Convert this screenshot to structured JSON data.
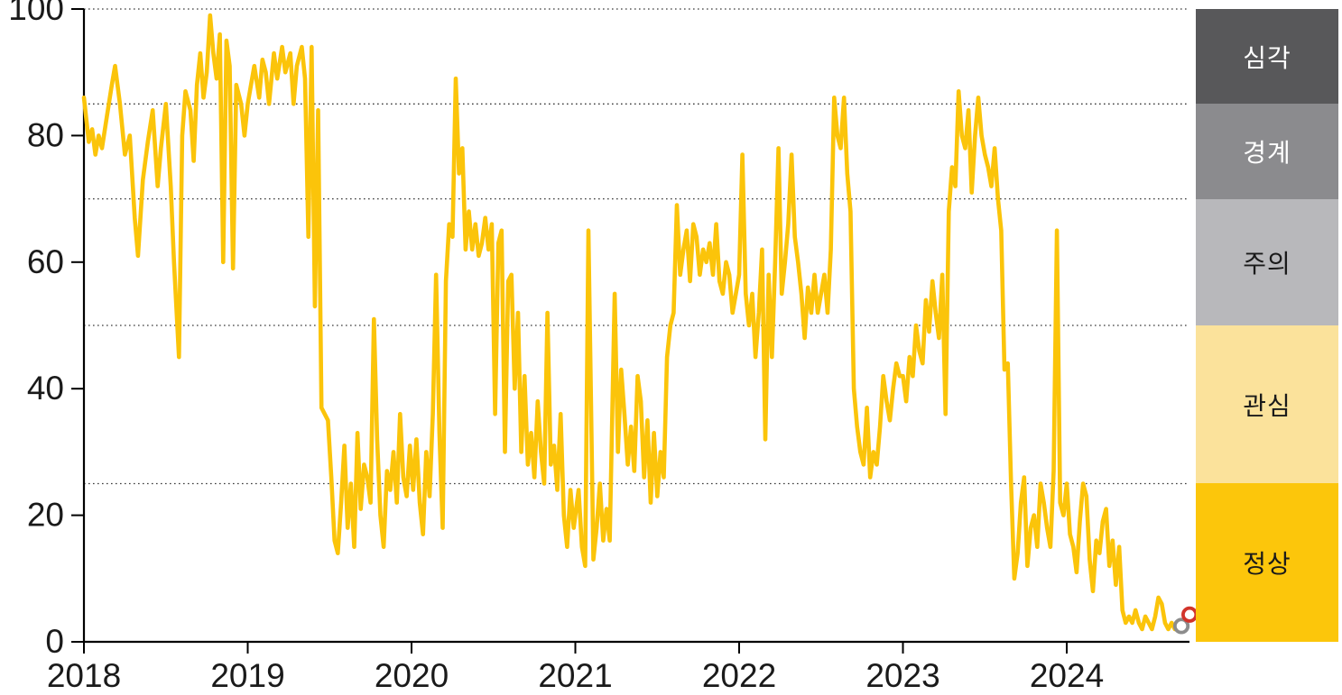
{
  "chart_data": {
    "type": "line",
    "title": "",
    "xlabel": "",
    "ylabel": "",
    "xlim": [
      2018,
      2024.78
    ],
    "ylim": [
      0,
      100
    ],
    "x_tick_labels": [
      "2018",
      "2019",
      "2020",
      "2021",
      "2022",
      "2023",
      "2024"
    ],
    "x_tick_values": [
      2018,
      2019,
      2020,
      2021,
      2022,
      2023,
      2024
    ],
    "y_tick_labels": [
      "0",
      "20",
      "40",
      "60",
      "80",
      "100"
    ],
    "y_tick_values": [
      0,
      20,
      40,
      60,
      80,
      100
    ],
    "gridline_values": [
      25,
      50,
      70,
      85,
      100
    ],
    "grid_style": "dotted",
    "line_color": "#FBC40A",
    "series_name": "risk-index",
    "points": [
      [
        2018.0,
        86
      ],
      [
        2018.03,
        79
      ],
      [
        2018.05,
        81
      ],
      [
        2018.07,
        77
      ],
      [
        2018.09,
        80
      ],
      [
        2018.11,
        78
      ],
      [
        2018.14,
        83
      ],
      [
        2018.17,
        88
      ],
      [
        2018.19,
        91
      ],
      [
        2018.22,
        85
      ],
      [
        2018.25,
        77
      ],
      [
        2018.28,
        80
      ],
      [
        2018.31,
        67
      ],
      [
        2018.33,
        61
      ],
      [
        2018.36,
        73
      ],
      [
        2018.39,
        79
      ],
      [
        2018.42,
        84
      ],
      [
        2018.45,
        72
      ],
      [
        2018.47,
        78
      ],
      [
        2018.5,
        85
      ],
      [
        2018.53,
        72
      ],
      [
        2018.55,
        60
      ],
      [
        2018.58,
        45
      ],
      [
        2018.6,
        80
      ],
      [
        2018.62,
        87
      ],
      [
        2018.65,
        84
      ],
      [
        2018.67,
        76
      ],
      [
        2018.69,
        88
      ],
      [
        2018.71,
        93
      ],
      [
        2018.73,
        86
      ],
      [
        2018.75,
        90
      ],
      [
        2018.77,
        99
      ],
      [
        2018.79,
        93
      ],
      [
        2018.81,
        89
      ],
      [
        2018.83,
        96
      ],
      [
        2018.85,
        60
      ],
      [
        2018.87,
        95
      ],
      [
        2018.89,
        91
      ],
      [
        2018.91,
        59
      ],
      [
        2018.93,
        88
      ],
      [
        2018.96,
        85
      ],
      [
        2018.98,
        80
      ],
      [
        2019.0,
        85
      ],
      [
        2019.02,
        88
      ],
      [
        2019.04,
        91
      ],
      [
        2019.07,
        86
      ],
      [
        2019.09,
        92
      ],
      [
        2019.11,
        90
      ],
      [
        2019.13,
        85
      ],
      [
        2019.16,
        93
      ],
      [
        2019.18,
        89
      ],
      [
        2019.21,
        94
      ],
      [
        2019.23,
        90
      ],
      [
        2019.26,
        93
      ],
      [
        2019.28,
        85
      ],
      [
        2019.3,
        91
      ],
      [
        2019.33,
        94
      ],
      [
        2019.35,
        89
      ],
      [
        2019.37,
        64
      ],
      [
        2019.39,
        94
      ],
      [
        2019.41,
        53
      ],
      [
        2019.43,
        84
      ],
      [
        2019.45,
        37
      ],
      [
        2019.47,
        36
      ],
      [
        2019.49,
        35
      ],
      [
        2019.51,
        26
      ],
      [
        2019.53,
        16
      ],
      [
        2019.55,
        14
      ],
      [
        2019.57,
        22
      ],
      [
        2019.59,
        31
      ],
      [
        2019.61,
        18
      ],
      [
        2019.63,
        25
      ],
      [
        2019.65,
        15
      ],
      [
        2019.67,
        33
      ],
      [
        2019.69,
        21
      ],
      [
        2019.71,
        28
      ],
      [
        2019.73,
        26
      ],
      [
        2019.75,
        22
      ],
      [
        2019.77,
        51
      ],
      [
        2019.79,
        32
      ],
      [
        2019.81,
        20
      ],
      [
        2019.83,
        15
      ],
      [
        2019.85,
        27
      ],
      [
        2019.87,
        24
      ],
      [
        2019.89,
        30
      ],
      [
        2019.91,
        22
      ],
      [
        2019.93,
        36
      ],
      [
        2019.95,
        26
      ],
      [
        2019.97,
        23
      ],
      [
        2019.99,
        31
      ],
      [
        2020.01,
        24
      ],
      [
        2020.03,
        32
      ],
      [
        2020.05,
        22
      ],
      [
        2020.07,
        17
      ],
      [
        2020.09,
        30
      ],
      [
        2020.11,
        23
      ],
      [
        2020.13,
        36
      ],
      [
        2020.15,
        58
      ],
      [
        2020.17,
        33
      ],
      [
        2020.19,
        18
      ],
      [
        2020.21,
        57
      ],
      [
        2020.23,
        66
      ],
      [
        2020.25,
        64
      ],
      [
        2020.27,
        89
      ],
      [
        2020.29,
        74
      ],
      [
        2020.31,
        78
      ],
      [
        2020.33,
        62
      ],
      [
        2020.35,
        68
      ],
      [
        2020.37,
        62
      ],
      [
        2020.39,
        66
      ],
      [
        2020.41,
        61
      ],
      [
        2020.43,
        63
      ],
      [
        2020.45,
        67
      ],
      [
        2020.47,
        62
      ],
      [
        2020.49,
        66
      ],
      [
        2020.51,
        36
      ],
      [
        2020.53,
        63
      ],
      [
        2020.55,
        65
      ],
      [
        2020.57,
        30
      ],
      [
        2020.59,
        57
      ],
      [
        2020.61,
        58
      ],
      [
        2020.63,
        40
      ],
      [
        2020.65,
        52
      ],
      [
        2020.67,
        30
      ],
      [
        2020.69,
        42
      ],
      [
        2020.71,
        28
      ],
      [
        2020.73,
        33
      ],
      [
        2020.75,
        26
      ],
      [
        2020.77,
        38
      ],
      [
        2020.79,
        30
      ],
      [
        2020.81,
        25
      ],
      [
        2020.83,
        52
      ],
      [
        2020.85,
        28
      ],
      [
        2020.87,
        31
      ],
      [
        2020.89,
        24
      ],
      [
        2020.91,
        36
      ],
      [
        2020.93,
        20
      ],
      [
        2020.95,
        15
      ],
      [
        2020.97,
        24
      ],
      [
        2020.99,
        18
      ],
      [
        2021.02,
        24
      ],
      [
        2021.04,
        15
      ],
      [
        2021.06,
        12
      ],
      [
        2021.08,
        65
      ],
      [
        2021.11,
        13
      ],
      [
        2021.13,
        18
      ],
      [
        2021.15,
        25
      ],
      [
        2021.17,
        16
      ],
      [
        2021.19,
        21
      ],
      [
        2021.21,
        16
      ],
      [
        2021.24,
        55
      ],
      [
        2021.26,
        30
      ],
      [
        2021.28,
        43
      ],
      [
        2021.3,
        36
      ],
      [
        2021.32,
        28
      ],
      [
        2021.34,
        34
      ],
      [
        2021.36,
        27
      ],
      [
        2021.38,
        42
      ],
      [
        2021.4,
        38
      ],
      [
        2021.42,
        26
      ],
      [
        2021.44,
        35
      ],
      [
        2021.46,
        22
      ],
      [
        2021.48,
        33
      ],
      [
        2021.5,
        23
      ],
      [
        2021.52,
        30
      ],
      [
        2021.54,
        26
      ],
      [
        2021.56,
        45
      ],
      [
        2021.58,
        50
      ],
      [
        2021.6,
        52
      ],
      [
        2021.62,
        69
      ],
      [
        2021.64,
        58
      ],
      [
        2021.66,
        62
      ],
      [
        2021.68,
        65
      ],
      [
        2021.7,
        57
      ],
      [
        2021.72,
        66
      ],
      [
        2021.74,
        64
      ],
      [
        2021.76,
        58
      ],
      [
        2021.78,
        62
      ],
      [
        2021.8,
        60
      ],
      [
        2021.82,
        63
      ],
      [
        2021.84,
        58
      ],
      [
        2021.86,
        66
      ],
      [
        2021.88,
        57
      ],
      [
        2021.9,
        55
      ],
      [
        2021.92,
        60
      ],
      [
        2021.94,
        58
      ],
      [
        2021.96,
        52
      ],
      [
        2021.98,
        55
      ],
      [
        2022.0,
        58
      ],
      [
        2022.02,
        77
      ],
      [
        2022.04,
        55
      ],
      [
        2022.06,
        50
      ],
      [
        2022.08,
        55
      ],
      [
        2022.1,
        45
      ],
      [
        2022.12,
        52
      ],
      [
        2022.14,
        62
      ],
      [
        2022.16,
        32
      ],
      [
        2022.18,
        58
      ],
      [
        2022.2,
        45
      ],
      [
        2022.22,
        60
      ],
      [
        2022.24,
        78
      ],
      [
        2022.26,
        55
      ],
      [
        2022.28,
        60
      ],
      [
        2022.3,
        66
      ],
      [
        2022.32,
        77
      ],
      [
        2022.34,
        64
      ],
      [
        2022.36,
        60
      ],
      [
        2022.38,
        55
      ],
      [
        2022.4,
        48
      ],
      [
        2022.42,
        56
      ],
      [
        2022.44,
        52
      ],
      [
        2022.46,
        58
      ],
      [
        2022.48,
        52
      ],
      [
        2022.5,
        55
      ],
      [
        2022.52,
        58
      ],
      [
        2022.54,
        52
      ],
      [
        2022.56,
        62
      ],
      [
        2022.58,
        86
      ],
      [
        2022.6,
        80
      ],
      [
        2022.62,
        78
      ],
      [
        2022.64,
        86
      ],
      [
        2022.66,
        74
      ],
      [
        2022.68,
        68
      ],
      [
        2022.7,
        40
      ],
      [
        2022.72,
        34
      ],
      [
        2022.74,
        30
      ],
      [
        2022.76,
        28
      ],
      [
        2022.78,
        37
      ],
      [
        2022.8,
        26
      ],
      [
        2022.82,
        30
      ],
      [
        2022.84,
        28
      ],
      [
        2022.86,
        34
      ],
      [
        2022.88,
        42
      ],
      [
        2022.9,
        38
      ],
      [
        2022.92,
        35
      ],
      [
        2022.94,
        40
      ],
      [
        2022.96,
        44
      ],
      [
        2022.98,
        42
      ],
      [
        2023.0,
        42
      ],
      [
        2023.02,
        38
      ],
      [
        2023.04,
        45
      ],
      [
        2023.06,
        42
      ],
      [
        2023.08,
        50
      ],
      [
        2023.1,
        46
      ],
      [
        2023.12,
        44
      ],
      [
        2023.14,
        54
      ],
      [
        2023.16,
        49
      ],
      [
        2023.18,
        57
      ],
      [
        2023.2,
        52
      ],
      [
        2023.22,
        48
      ],
      [
        2023.24,
        58
      ],
      [
        2023.26,
        36
      ],
      [
        2023.28,
        68
      ],
      [
        2023.3,
        75
      ],
      [
        2023.32,
        72
      ],
      [
        2023.34,
        87
      ],
      [
        2023.36,
        80
      ],
      [
        2023.38,
        78
      ],
      [
        2023.4,
        84
      ],
      [
        2023.42,
        71
      ],
      [
        2023.44,
        80
      ],
      [
        2023.46,
        86
      ],
      [
        2023.48,
        80
      ],
      [
        2023.5,
        77
      ],
      [
        2023.52,
        75
      ],
      [
        2023.54,
        72
      ],
      [
        2023.56,
        78
      ],
      [
        2023.58,
        70
      ],
      [
        2023.6,
        65
      ],
      [
        2023.62,
        43
      ],
      [
        2023.64,
        44
      ],
      [
        2023.66,
        25
      ],
      [
        2023.68,
        10
      ],
      [
        2023.7,
        14
      ],
      [
        2023.72,
        22
      ],
      [
        2023.74,
        26
      ],
      [
        2023.76,
        12
      ],
      [
        2023.78,
        18
      ],
      [
        2023.8,
        20
      ],
      [
        2023.82,
        15
      ],
      [
        2023.84,
        25
      ],
      [
        2023.86,
        22
      ],
      [
        2023.88,
        18
      ],
      [
        2023.9,
        15
      ],
      [
        2023.92,
        27
      ],
      [
        2023.94,
        65
      ],
      [
        2023.96,
        22
      ],
      [
        2023.98,
        20
      ],
      [
        2024.0,
        25
      ],
      [
        2024.02,
        17
      ],
      [
        2024.04,
        15
      ],
      [
        2024.06,
        11
      ],
      [
        2024.08,
        19
      ],
      [
        2024.1,
        25
      ],
      [
        2024.12,
        23
      ],
      [
        2024.14,
        13
      ],
      [
        2024.16,
        8
      ],
      [
        2024.18,
        16
      ],
      [
        2024.2,
        14
      ],
      [
        2024.22,
        19
      ],
      [
        2024.24,
        21
      ],
      [
        2024.26,
        12
      ],
      [
        2024.28,
        16
      ],
      [
        2024.3,
        9
      ],
      [
        2024.32,
        15
      ],
      [
        2024.34,
        5
      ],
      [
        2024.36,
        3
      ],
      [
        2024.38,
        4
      ],
      [
        2024.4,
        3
      ],
      [
        2024.42,
        5
      ],
      [
        2024.44,
        3
      ],
      [
        2024.46,
        2
      ],
      [
        2024.48,
        4
      ],
      [
        2024.5,
        3
      ],
      [
        2024.52,
        2
      ],
      [
        2024.54,
        4
      ],
      [
        2024.56,
        7
      ],
      [
        2024.58,
        6
      ],
      [
        2024.6,
        3
      ],
      [
        2024.62,
        2
      ],
      [
        2024.64,
        3
      ],
      [
        2024.66,
        2
      ],
      [
        2024.68,
        3
      ],
      [
        2024.7,
        2.5
      ]
    ],
    "end_markers": [
      {
        "name": "previous-week-marker",
        "x": 2024.7,
        "value": 2.5,
        "color": "#8C8C8C"
      },
      {
        "name": "latest-week-marker",
        "x": 2024.75,
        "value": 4.3,
        "color": "#D2342B"
      }
    ],
    "zones": [
      {
        "label": "심각",
        "min": 85,
        "max": 100,
        "color": "#58585A",
        "text_color": "#FFFFFF"
      },
      {
        "label": "경계",
        "min": 70,
        "max": 85,
        "color": "#8B8B8E",
        "text_color": "#FFFFFF"
      },
      {
        "label": "주의",
        "min": 50,
        "max": 70,
        "color": "#B8B8BB",
        "text_color": "#1A1A1A"
      },
      {
        "label": "관심",
        "min": 25,
        "max": 50,
        "color": "#FBE29B",
        "text_color": "#1A1A1A"
      },
      {
        "label": "정상",
        "min": 0,
        "max": 25,
        "color": "#FCC60B",
        "text_color": "#1A1A1A"
      }
    ],
    "legend_position": "right",
    "axis_color": "#000000",
    "tick_label_color": "#1A1A1A"
  }
}
